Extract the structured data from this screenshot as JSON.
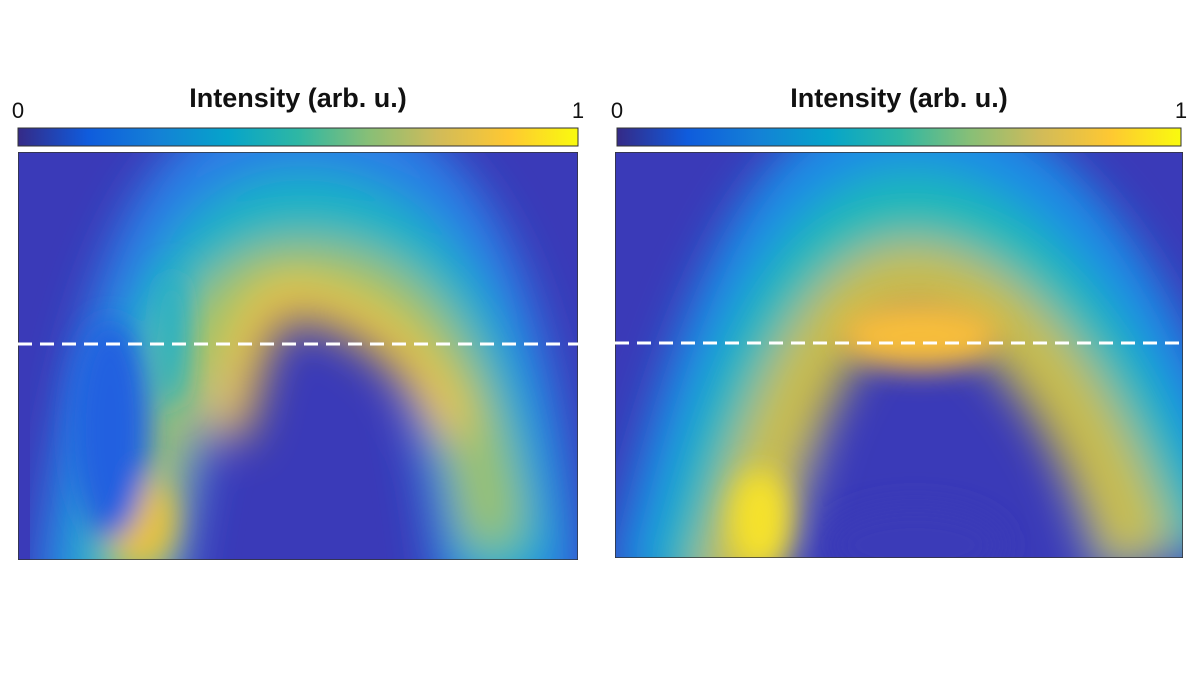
{
  "chart_data": [
    {
      "type": "heatmap",
      "colorbar_label": "Intensity (arb. u.)",
      "clim": [
        0,
        1
      ],
      "cticks": [
        0,
        1
      ],
      "colormap": [
        "#352a87",
        "#0f5cdd",
        "#1481d6",
        "#06a4ca",
        "#2eb7a4",
        "#87bf77",
        "#d1bb59",
        "#fec832",
        "#f9fb0e"
      ]
    },
    {
      "type": "heatmap",
      "colorbar_label": "Intensity (arb. u.)",
      "clim": [
        0,
        1
      ],
      "cticks": [
        0,
        1
      ],
      "colormap": [
        "#352a87",
        "#0f5cdd",
        "#1481d6",
        "#06a4ca",
        "#2eb7a4",
        "#87bf77",
        "#d1bb59",
        "#fec832",
        "#f9fb0e"
      ]
    }
  ]
}
